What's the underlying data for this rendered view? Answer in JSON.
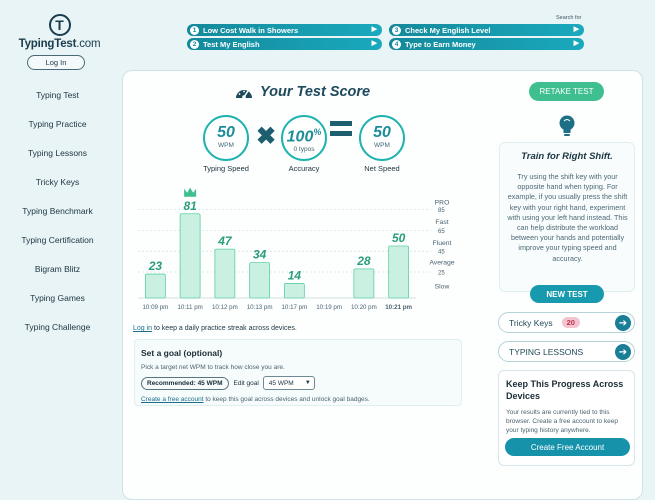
{
  "brand": {
    "logo_letter": "T",
    "name": "TypingTest",
    "domain": ".com"
  },
  "auth": {
    "login_label": "Log In"
  },
  "sidebar": {
    "items": [
      {
        "label": "Typing Test"
      },
      {
        "label": "Typing Practice"
      },
      {
        "label": "Typing Lessons"
      },
      {
        "label": "Tricky Keys"
      },
      {
        "label": "Typing Benchmark"
      },
      {
        "label": "Typing Certification"
      },
      {
        "label": "Bigram Blitz"
      },
      {
        "label": "Typing Games"
      },
      {
        "label": "Typing Challenge"
      }
    ]
  },
  "top_links": {
    "search_for": "Search for",
    "items": [
      {
        "num": "1",
        "label": "Low Cost Walk in Showers"
      },
      {
        "num": "2",
        "label": "Test My English"
      },
      {
        "num": "3",
        "label": "Check My English Level"
      },
      {
        "num": "4",
        "label": "Type to Earn Money"
      }
    ]
  },
  "score": {
    "title": "Your Test Score",
    "retake_label": "RETAKE TEST",
    "speed": {
      "value": "50",
      "unit": "WPM",
      "caption": "Typing Speed"
    },
    "accuracy": {
      "value": "100",
      "unit": "%",
      "sub": "0 typos",
      "caption": "Accuracy"
    },
    "net": {
      "value": "50",
      "unit": "WPM",
      "caption": "Net Speed"
    }
  },
  "chart_data": {
    "type": "bar",
    "categories": [
      "10:09 pm",
      "10:11 pm",
      "10:12 pm",
      "10:13 pm",
      "10:17 pm",
      "10:19 pm",
      "10:20 pm",
      "10:21 pm"
    ],
    "values": [
      23,
      81,
      47,
      34,
      14,
      null,
      28,
      50
    ],
    "labels": [
      "23",
      "81",
      "47",
      "34",
      "14",
      "",
      "28",
      "50"
    ],
    "best_index": 1,
    "current_index": 7,
    "ylim": [
      0,
      100
    ],
    "ticks": [
      25,
      45,
      65,
      85
    ],
    "tick_labels": [
      "25",
      "45",
      "65",
      "85"
    ],
    "bands": [
      "PRO",
      "Fast",
      "Fluent",
      "Average",
      "Slow"
    ],
    "band_values": [
      93,
      74,
      54,
      35,
      12
    ],
    "grid": true
  },
  "practice": {
    "login_link": "Log in",
    "login_note": " to keep a daily practice streak across devices."
  },
  "goal": {
    "title": "Set a goal (optional)",
    "subtitle": "Pick a target net WPM to track how close you are.",
    "recommended": "Recommended: 45 WPM",
    "edit_label": "Edit goal",
    "selected": "45 WPM",
    "account_link": "Create a free account",
    "account_note": " to keep this goal across devices and unlock goal badges."
  },
  "tip": {
    "title": "Train for Right Shift.",
    "body": "Try using the shift key with your opposite hand when typing. For example, if you usually press the shift key with your right hand, experiment with using your left hand instead. This can help distribute the workload between your hands and potentially improve your typing speed and accuracy.",
    "new_test_label": "NEW TEST"
  },
  "tricky_keys": {
    "label": "Tricky Keys",
    "count": "20"
  },
  "typing_lessons": {
    "label": "TYPING LESSONS"
  },
  "keep_progress": {
    "title": "Keep This Progress Across Devices",
    "body": "Your results are currently tied to this browser. Create a free account to keep your typing history anywhere.",
    "button": "Create Free Account"
  },
  "colors": {
    "accent": "#1799ae",
    "green": "#3fbf8f",
    "bar_fill": "#c9f0e1",
    "bar_stroke": "#5fcfa3",
    "value_text": "#2a9d7c",
    "best_crown": "#3fbf8f"
  }
}
